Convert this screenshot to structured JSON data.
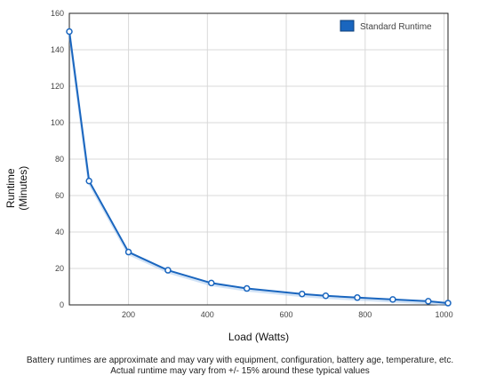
{
  "chart_data": {
    "type": "line",
    "xlabel": "Load (Watts)",
    "ylabel_lines": [
      "Runtime",
      "(Minutes)"
    ],
    "xlim": [
      50,
      1010
    ],
    "ylim": [
      0,
      160
    ],
    "x_ticks": [
      200,
      400,
      600,
      800,
      1000
    ],
    "y_ticks": [
      0,
      20,
      40,
      60,
      80,
      100,
      120,
      140,
      160
    ],
    "grid": true,
    "legend_position": "top-right",
    "series": [
      {
        "name": "Standard Runtime",
        "color": "#1a66bf",
        "x": [
          50,
          100,
          200,
          300,
          410,
          500,
          640,
          700,
          780,
          870,
          960,
          1010
        ],
        "y": [
          150,
          68,
          29,
          19,
          12,
          9,
          6,
          5,
          4,
          3,
          2,
          1
        ]
      }
    ]
  },
  "footnote": {
    "line1": "Battery runtimes are approximate and may vary with equipment, configuration, battery age, temperature, etc.",
    "line2": "Actual runtime may vary from +/- 15% around these typical values"
  }
}
